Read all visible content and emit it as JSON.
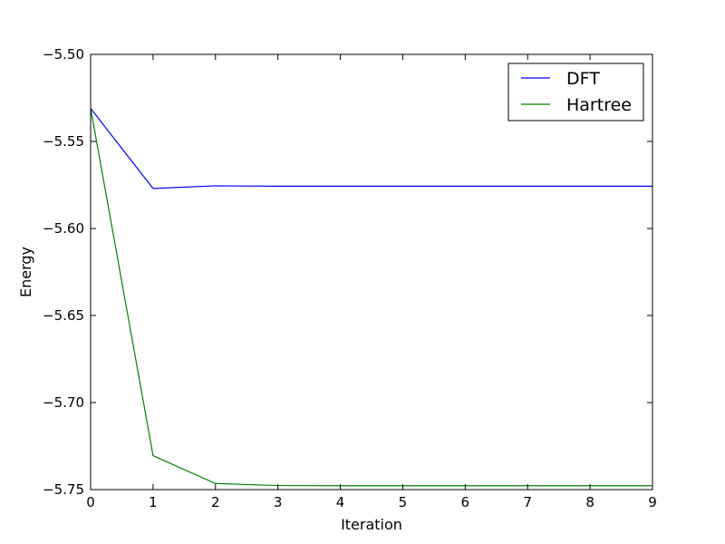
{
  "chart_data": {
    "type": "line",
    "title": "",
    "xlabel": "Iteration",
    "ylabel": "Energy",
    "xlim": [
      0,
      9
    ],
    "ylim": [
      -5.75,
      -5.5
    ],
    "x_ticks": [
      0,
      1,
      2,
      3,
      4,
      5,
      6,
      7,
      8,
      9
    ],
    "y_ticks": [
      -5.75,
      -5.7,
      -5.65,
      -5.6,
      -5.55,
      -5.5
    ],
    "y_tick_labels": [
      "−5.75",
      "−5.70",
      "−5.65",
      "−5.60",
      "−5.55",
      "−5.50"
    ],
    "grid": false,
    "legend_position": "top-right",
    "x": [
      0,
      1,
      2,
      3,
      4,
      5,
      6,
      7,
      8,
      9
    ],
    "series": [
      {
        "name": "DFT",
        "color": "#0000ff",
        "values": [
          -5.531,
          -5.577,
          -5.5755,
          -5.5757,
          -5.5757,
          -5.5757,
          -5.5757,
          -5.5757,
          -5.5757,
          -5.5757
        ]
      },
      {
        "name": "Hartree",
        "color": "#008000",
        "values": [
          -5.531,
          -5.7305,
          -5.7465,
          -5.7477,
          -5.7478,
          -5.7478,
          -5.7478,
          -5.7478,
          -5.7478,
          -5.7478
        ]
      }
    ]
  }
}
